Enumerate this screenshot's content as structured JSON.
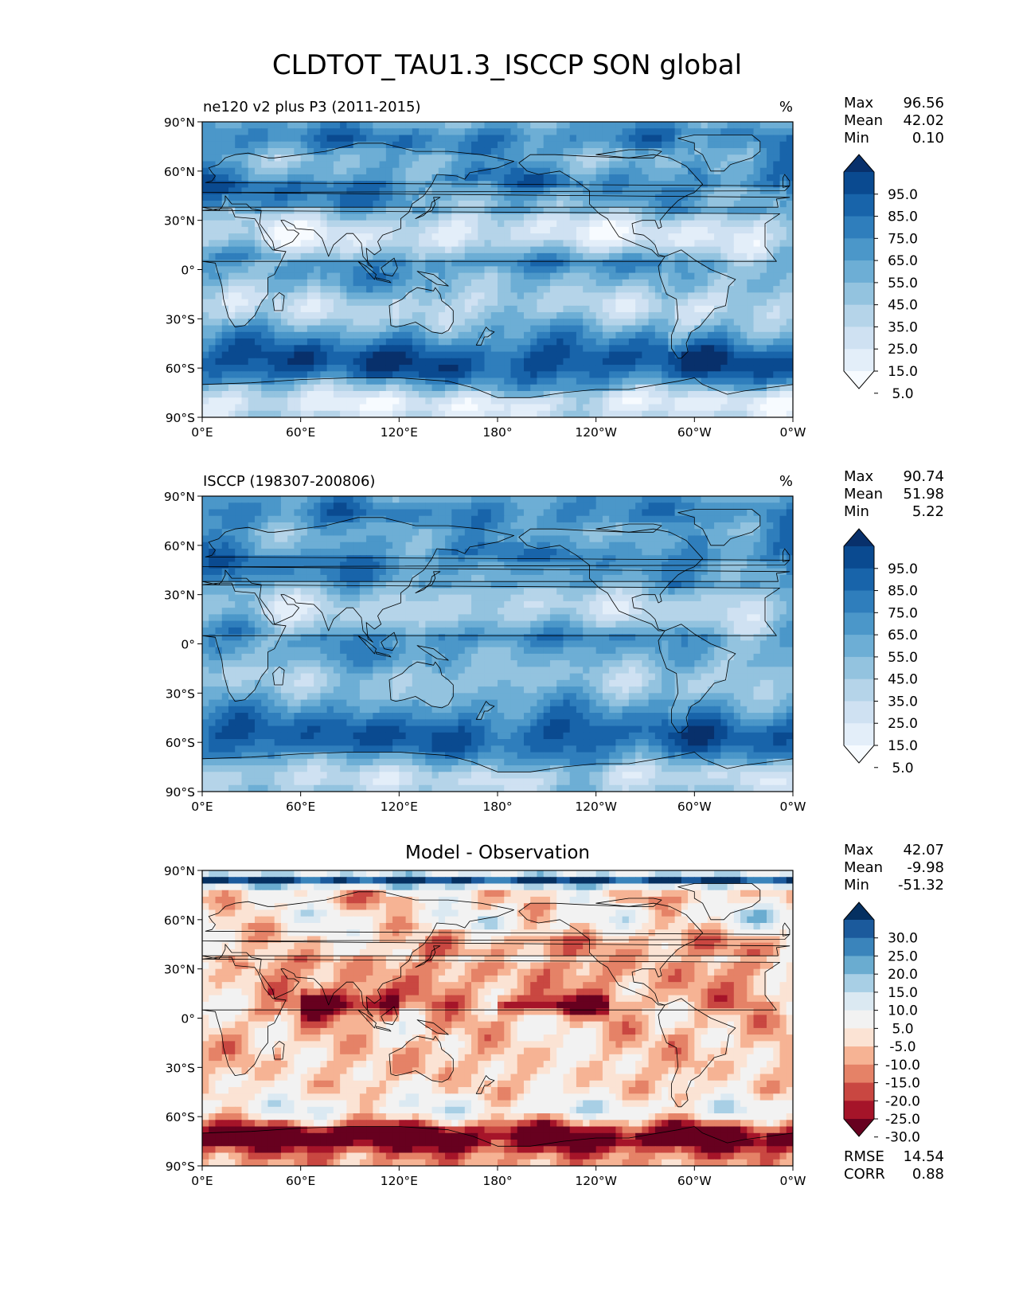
{
  "title": "CLDTOT_TAU1.3_ISCCP SON global",
  "colors": {
    "blues": [
      "#f7fbff",
      "#e3eef9",
      "#cfe1f2",
      "#b5d4e9",
      "#93c3df",
      "#6daed5",
      "#4b97c9",
      "#2f7ebc",
      "#1864aa",
      "#0a4a90",
      "#08306b"
    ],
    "diverging": [
      "#67001f",
      "#a51429",
      "#c94741",
      "#e58267",
      "#f6b394",
      "#fbe3d4",
      "#f2f2f2",
      "#dbe9f2",
      "#a8cfe5",
      "#6aacd0",
      "#3a84bb",
      "#1b5a9c",
      "#053061"
    ],
    "land_line": "#000000"
  },
  "chart_data": [
    {
      "type": "heatmap",
      "map_type": "filled-contour-map",
      "panel": "model",
      "left_title": "ne120 v2 plus P3 (2011-2015)",
      "right_title": "%",
      "x_ticks": [
        "0°E",
        "60°E",
        "120°E",
        "180°",
        "120°W",
        "60°W",
        "0°W"
      ],
      "y_ticks": [
        "90°N",
        "60°N",
        "30°N",
        "0°",
        "30°S",
        "60°S",
        "90°S"
      ],
      "xlim": [
        0,
        360
      ],
      "ylim": [
        -90,
        90
      ],
      "stats": [
        {
          "label": "Max",
          "value": "96.56"
        },
        {
          "label": "Mean",
          "value": "42.02"
        },
        {
          "label": "Min",
          "value": "0.10"
        }
      ],
      "colorbar": {
        "extend": "both",
        "tick_labels": [
          "95.0",
          "85.0",
          "75.0",
          "65.0",
          "55.0",
          "45.0",
          "35.0",
          "25.0",
          "15.0",
          "5.0"
        ],
        "scale": "blues"
      },
      "approx_field": {
        "base": "model"
      }
    },
    {
      "type": "heatmap",
      "map_type": "filled-contour-map",
      "panel": "obs",
      "left_title": "ISCCP (198307-200806)",
      "right_title": "%",
      "x_ticks": [
        "0°E",
        "60°E",
        "120°E",
        "180°",
        "120°W",
        "60°W",
        "0°W"
      ],
      "y_ticks": [
        "90°N",
        "60°N",
        "30°N",
        "0°",
        "30°S",
        "60°S",
        "90°S"
      ],
      "xlim": [
        0,
        360
      ],
      "ylim": [
        -90,
        90
      ],
      "stats": [
        {
          "label": "Max",
          "value": "90.74"
        },
        {
          "label": "Mean",
          "value": "51.98"
        },
        {
          "label": "Min",
          "value": "5.22"
        }
      ],
      "colorbar": {
        "extend": "both",
        "tick_labels": [
          "95.0",
          "85.0",
          "75.0",
          "65.0",
          "55.0",
          "45.0",
          "35.0",
          "25.0",
          "15.0",
          "5.0"
        ],
        "scale": "blues"
      },
      "approx_field": {
        "base": "obs"
      }
    },
    {
      "type": "heatmap",
      "map_type": "filled-contour-map",
      "panel": "diff",
      "center_title": "Model - Observation",
      "x_ticks": [
        "0°E",
        "60°E",
        "120°E",
        "180°",
        "120°W",
        "60°W",
        "0°W"
      ],
      "y_ticks": [
        "90°N",
        "60°N",
        "30°N",
        "0°",
        "30°S",
        "60°S",
        "90°S"
      ],
      "xlim": [
        0,
        360
      ],
      "ylim": [
        -90,
        90
      ],
      "stats": [
        {
          "label": "Max",
          "value": "42.07"
        },
        {
          "label": "Mean",
          "value": "-9.98"
        },
        {
          "label": "Min",
          "value": "-51.32"
        }
      ],
      "extra_stats": [
        {
          "label": "RMSE",
          "value": "14.54"
        },
        {
          "label": "CORR",
          "value": "0.88"
        }
      ],
      "colorbar": {
        "extend": "both",
        "tick_labels": [
          "30.0",
          "25.0",
          "20.0",
          "15.0",
          "10.0",
          "5.0",
          "-5.0",
          "-10.0",
          "-15.0",
          "-20.0",
          "-25.0",
          "-30.0"
        ],
        "scale": "diverging"
      },
      "approx_field": {
        "base": "diff"
      }
    }
  ]
}
